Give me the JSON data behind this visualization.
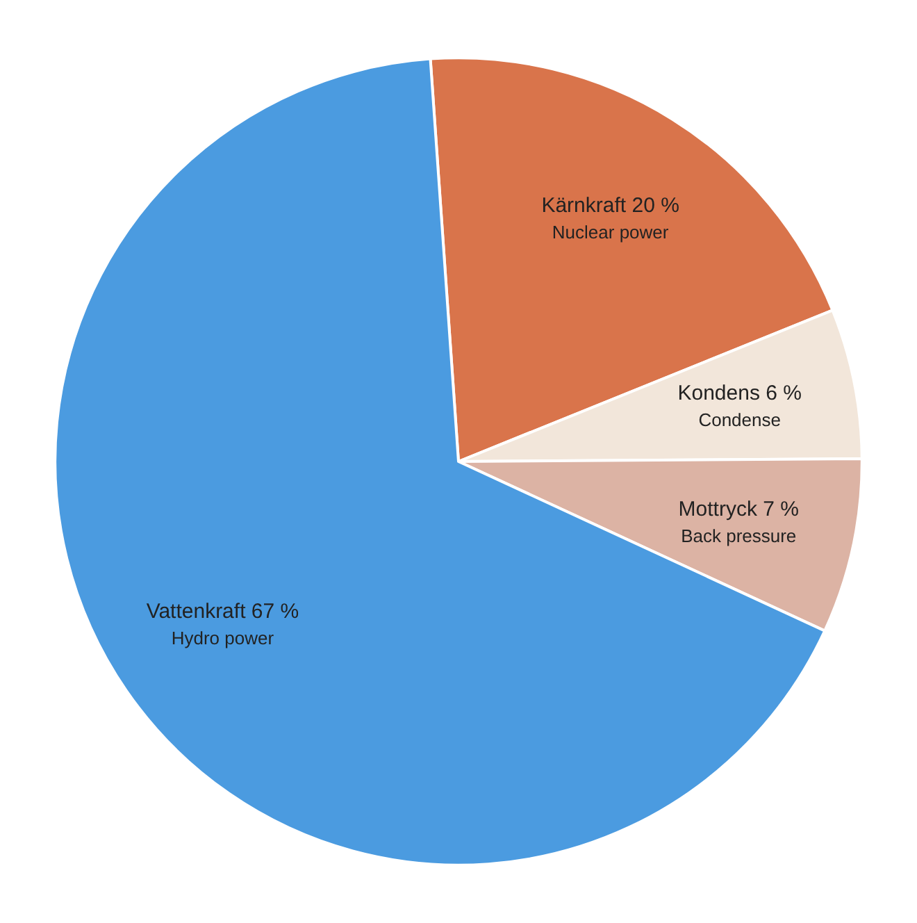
{
  "chart_data": {
    "type": "pie",
    "categories": [
      "Kärnkraft",
      "Kondens",
      "Mottryck",
      "Vattenkraft"
    ],
    "values": [
      20,
      6,
      7,
      67
    ],
    "value_labels": [
      "20 %",
      "6 %",
      "7 %",
      "67 %"
    ],
    "colors": [
      "#d9744b",
      "#f2e6da",
      "#dcb3a4",
      "#4b9be0"
    ],
    "annotations": [
      "Nuclear power",
      "Condense",
      "Back pressure",
      "Hydro power"
    ],
    "legend": false
  }
}
